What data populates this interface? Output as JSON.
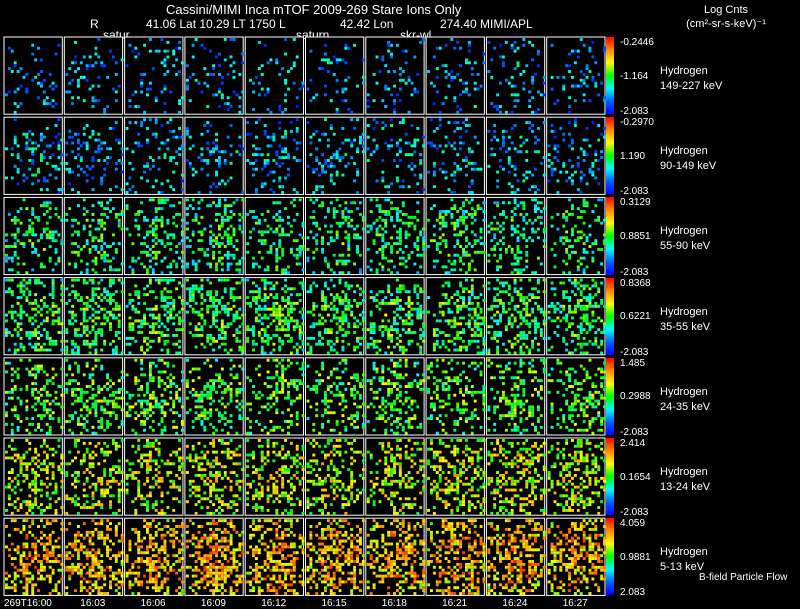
{
  "header": {
    "title": "Cassini/MIMI Inca mTOF  2009-269   Stare    Ions Only",
    "r_label": "R",
    "lat_lt": "41.06 Lat 10.29 LT 1750 L",
    "lon": "42.42 Lon",
    "mimi": "274.40   MIMI/APL",
    "targets": [
      "satur",
      "saturn",
      "skr-wl"
    ],
    "log_units_line1": "Log Cnts",
    "log_units_line2": "(cm²-sr-s-keV)⁻¹"
  },
  "colors": {
    "background": "#000000",
    "colorbar": [
      "#ff0000",
      "#ff8c00",
      "#ffff00",
      "#00ff00",
      "#00ffff",
      "#0060ff",
      "#0000ff"
    ]
  },
  "chart_data": {
    "type": "heatmap",
    "description_hint": "small-multiple ENA image grid, 7 energy channels x 10 time frames",
    "x_tick_labels": [
      "269T16:00",
      "16:03",
      "16:06",
      "16:09",
      "16:12",
      "16:15",
      "16:18",
      "16:21",
      "16:24",
      "16:27"
    ],
    "channels": [
      {
        "species": "Hydrogen",
        "energy": "149-227 keV",
        "cb_max": "-0.2446",
        "cb_mid": "-1.164",
        "cb_min": "-2.083",
        "mean_level": 0.18,
        "density": 0.09
      },
      {
        "species": "Hydrogen",
        "energy": "90-149 keV",
        "cb_max": "-0.2970",
        "cb_mid": "1.190",
        "cb_min": "-2.083",
        "mean_level": 0.2,
        "density": 0.14
      },
      {
        "species": "Hydrogen",
        "energy": "55-90 keV",
        "cb_max": "0.3129",
        "cb_mid": "0.8851",
        "cb_min": "-2.083",
        "mean_level": 0.38,
        "density": 0.22
      },
      {
        "species": "Hydrogen",
        "energy": "35-55 keV",
        "cb_max": "0.8368",
        "cb_mid": "0.6221",
        "cb_min": "-2.083",
        "mean_level": 0.42,
        "density": 0.3
      },
      {
        "species": "Hydrogen",
        "energy": "24-35 keV",
        "cb_max": "1.485",
        "cb_mid": "0.2988",
        "cb_min": "-2.083",
        "mean_level": 0.46,
        "density": 0.24
      },
      {
        "species": "Hydrogen",
        "energy": "13-24 keV",
        "cb_max": "2.414",
        "cb_mid": "0.1654",
        "cb_min": "-2.083",
        "mean_level": 0.58,
        "density": 0.28
      },
      {
        "species": "Hydrogen",
        "energy": "5-13 keV",
        "cb_max": "4.059",
        "cb_mid": "0.9881",
        "cb_min": "2.083",
        "mean_level": 0.7,
        "density": 0.36
      }
    ],
    "footer_note": "B-field Particle Flow"
  }
}
